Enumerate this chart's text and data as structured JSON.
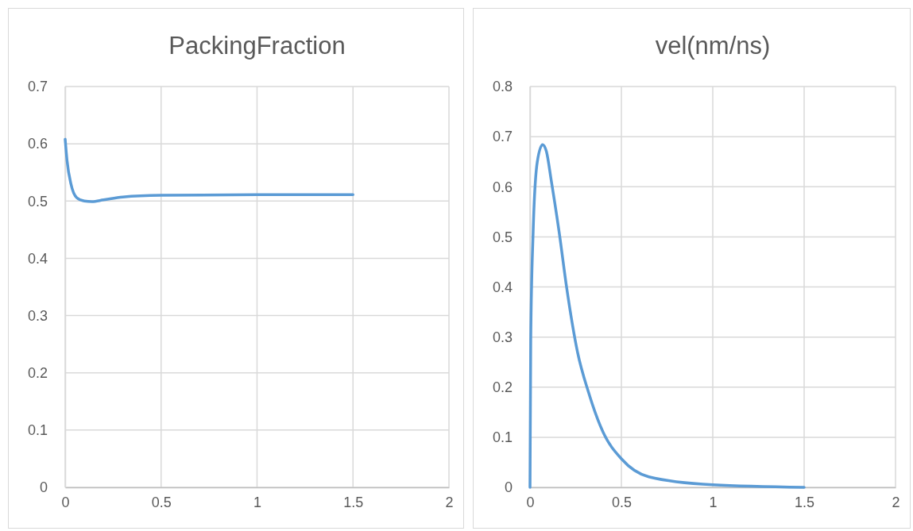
{
  "chart_data": [
    {
      "type": "line",
      "title": "PackingFraction",
      "x": [
        0,
        0.01,
        0.03,
        0.06,
        0.1,
        0.14,
        0.2,
        0.3,
        0.5,
        1,
        1.5
      ],
      "series": [
        {
          "color": "#5b9bd5",
          "values": [
            0.608,
            0.57,
            0.53,
            0.506,
            0.5,
            0.499,
            0.502,
            0.507,
            0.51,
            0.511,
            0.511
          ]
        }
      ],
      "xlim": [
        0,
        2
      ],
      "xticks": [
        0,
        0.5,
        1,
        1.5,
        2
      ],
      "ylim": [
        0,
        0.7
      ],
      "yticks": [
        0,
        0.1,
        0.2,
        0.3,
        0.4,
        0.5,
        0.6,
        0.7
      ],
      "grid": true,
      "marker": "none"
    },
    {
      "type": "line",
      "title": "vel(nm/ns)",
      "x": [
        0,
        0.004,
        0.017,
        0.04,
        0.069,
        0.09,
        0.116,
        0.16,
        0.2,
        0.26,
        0.32,
        0.4,
        0.5,
        0.65,
        1,
        1.5
      ],
      "series": [
        {
          "color": "#5b9bd5",
          "values": [
            0,
            0.295,
            0.508,
            0.65,
            0.684,
            0.67,
            0.613,
            0.508,
            0.4,
            0.27,
            0.19,
            0.11,
            0.057,
            0.021,
            0.005,
            0
          ]
        }
      ],
      "xlim": [
        0,
        2
      ],
      "xticks": [
        0,
        0.5,
        1,
        1.5,
        2
      ],
      "ylim": [
        0,
        0.8
      ],
      "yticks": [
        0,
        0.1,
        0.2,
        0.3,
        0.4,
        0.5,
        0.6,
        0.7,
        0.8
      ],
      "grid": true,
      "marker": "none"
    }
  ]
}
